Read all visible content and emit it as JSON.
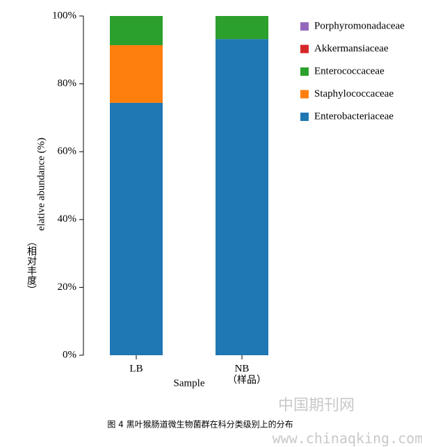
{
  "chart_data": {
    "type": "stacked_bar",
    "y_label": "elative abundance (%)",
    "y_label_cn": "（相对丰度）",
    "x_label": "Sample",
    "x_label_cn": "（样品）",
    "caption": "图 4 黑叶猴肠道微生物菌群在科分类级别上的分布",
    "watermark": "中国期刊网",
    "watermark_url": "www.chinaqking.com",
    "categories": [
      "LB",
      "NB"
    ],
    "series": [
      {
        "name": "Enterobacteriaceae",
        "color": "#1f77b4",
        "values": [
          74.4,
          93.2
        ]
      },
      {
        "name": "Staphylococcaceae",
        "color": "#ff7f0e",
        "values": [
          17.0,
          0
        ]
      },
      {
        "name": "Enterococcaceae",
        "color": "#2ca02c",
        "values": [
          8.6,
          6.8
        ]
      },
      {
        "name": "Akkermansiaceae",
        "color": "#d62728",
        "values": [
          0,
          0
        ]
      },
      {
        "name": "Porphyromonadaceae",
        "color": "#9467bd",
        "values": [
          0,
          0
        ]
      }
    ],
    "ylim": [
      0,
      100
    ],
    "yticks": [
      {
        "value": 0,
        "label": "0%"
      },
      {
        "value": 20,
        "label": "20%"
      },
      {
        "value": 40,
        "label": "40%"
      },
      {
        "value": 60,
        "label": "60%"
      },
      {
        "value": 80,
        "label": "80%"
      },
      {
        "value": 100,
        "label": "100%"
      }
    ],
    "legend": "upper right"
  }
}
